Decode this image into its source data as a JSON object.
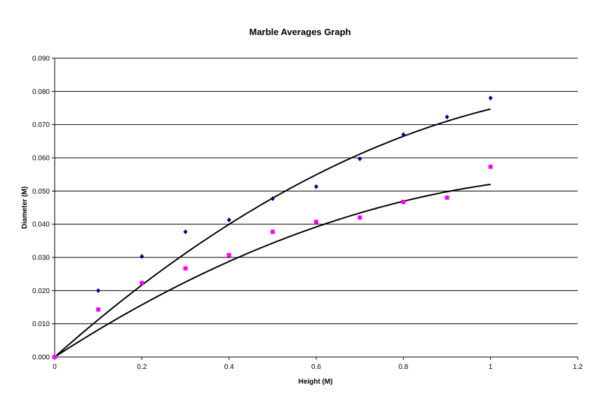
{
  "chart_data": {
    "type": "scatter",
    "title": "Marble Averages Graph",
    "xlabel": "Height (M)",
    "ylabel": "Diameter (M)",
    "xlim": [
      0,
      1.2
    ],
    "ylim": [
      0,
      0.09
    ],
    "x_ticks": [
      "0",
      "0.2",
      "0.4",
      "0.6",
      "0.8",
      "1",
      "1.2"
    ],
    "y_ticks": [
      "0.000",
      "0.010",
      "0.020",
      "0.030",
      "0.040",
      "0.050",
      "0.060",
      "0.070",
      "0.080",
      "0.090"
    ],
    "grid": "horizontal",
    "legend": "none",
    "series": [
      {
        "marker": "diamond",
        "color": "#000080",
        "x": [
          0,
          0.1,
          0.2,
          0.3,
          0.4,
          0.5,
          0.6,
          0.7,
          0.8,
          0.9,
          1.0
        ],
        "y": [
          0.0,
          0.02,
          0.0303,
          0.0377,
          0.0413,
          0.0477,
          0.0513,
          0.0597,
          0.067,
          0.0723,
          0.078
        ]
      },
      {
        "marker": "square",
        "color": "#ff00ff",
        "x": [
          0,
          0.1,
          0.2,
          0.3,
          0.4,
          0.5,
          0.6,
          0.7,
          0.8,
          0.9,
          1.0
        ],
        "y": [
          0.0,
          0.0143,
          0.0223,
          0.0267,
          0.0307,
          0.0377,
          0.0407,
          0.042,
          0.0467,
          0.048,
          0.0573
        ]
      }
    ],
    "trendlines": [
      {
        "type": "polynomial-2",
        "color": "#000000",
        "coefficients": [
          0.0,
          0.1167,
          -0.042
        ]
      },
      {
        "type": "polynomial-2",
        "color": "#000000",
        "coefficients": [
          0.0,
          0.0852,
          -0.0332
        ]
      }
    ]
  }
}
